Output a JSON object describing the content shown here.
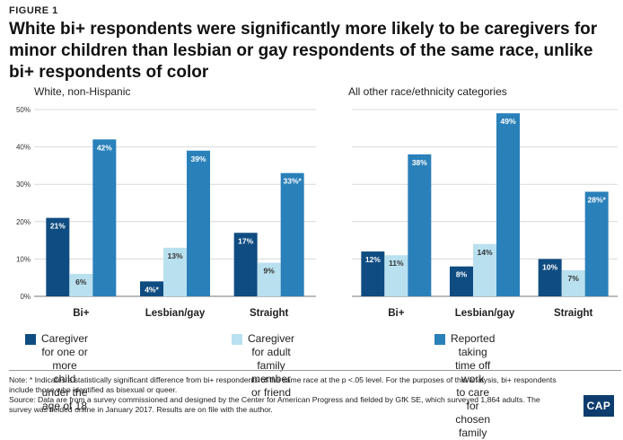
{
  "figure_label": "FIGURE 1",
  "title": "White bi+ respondents were significantly more likely to be caregivers for minor children than lesbian or gay respondents of the same race, unlike bi+ respondents of color",
  "legend": [
    {
      "line1": "Caregiver for one or more",
      "line2": "child under the age of 18",
      "color": "#0f4c81"
    },
    {
      "line1": "Caregiver for adult family",
      "line2": "member or friend",
      "color": "#b9e0ef"
    },
    {
      "line1": "Reported taking time off work",
      "line2": "to care for chosen family",
      "color": "#2a80b9"
    }
  ],
  "notes": {
    "note": "Note: * Indicates a statistically significant difference from bi+ respondents of the same race at the p <.05 level. For the purposes of this analysis, bi+ respondents include those who identified as bisexual or queer.",
    "source": "Source: Data are from a survey commissioned and designed by the Center for American Progress and fielded by GfK SE, which surveyed 1,864 adults. The survey was fielded online in January 2017. Results are on file with the author."
  },
  "logo": "CAP",
  "chart_data": [
    {
      "type": "bar",
      "title": "White, non-Hispanic",
      "categories": [
        "Bi+",
        "Lesbian/gay",
        "Straight"
      ],
      "ylim": [
        0,
        50
      ],
      "yticks": [
        "0%",
        "10%",
        "20%",
        "30%",
        "40%",
        "50%"
      ],
      "ytick_values": [
        0,
        10,
        20,
        30,
        40,
        50
      ],
      "series": [
        {
          "name": "Caregiver for one or more child under the age of 18",
          "values": [
            21,
            4,
            17
          ],
          "labels": [
            "21%",
            "4%*",
            "17%"
          ],
          "color": "#0f4c81"
        },
        {
          "name": "Caregiver for adult family member or friend",
          "values": [
            6,
            13,
            9
          ],
          "labels": [
            "6%",
            "13%",
            "9%"
          ],
          "color": "#b9e0ef"
        },
        {
          "name": "Reported taking time off work to care for chosen family",
          "values": [
            42,
            39,
            33
          ],
          "labels": [
            "42%",
            "39%",
            "33%*"
          ],
          "color": "#2a80b9"
        }
      ]
    },
    {
      "type": "bar",
      "title": "All other race/ethnicity categories",
      "categories": [
        "Bi+",
        "Lesbian/gay",
        "Straight"
      ],
      "ylim": [
        0,
        50
      ],
      "series": [
        {
          "name": "Caregiver for one or more child under the age of 18",
          "values": [
            12,
            8,
            10
          ],
          "labels": [
            "12%",
            "8%",
            "10%"
          ],
          "color": "#0f4c81"
        },
        {
          "name": "Caregiver for adult family member or friend",
          "values": [
            11,
            14,
            7
          ],
          "labels": [
            "11%",
            "14%",
            "7%"
          ],
          "color": "#b9e0ef"
        },
        {
          "name": "Reported taking time off work to care for chosen family",
          "values": [
            38,
            49,
            28
          ],
          "labels": [
            "38%",
            "49%",
            "28%*"
          ],
          "color": "#2a80b9"
        }
      ]
    }
  ]
}
